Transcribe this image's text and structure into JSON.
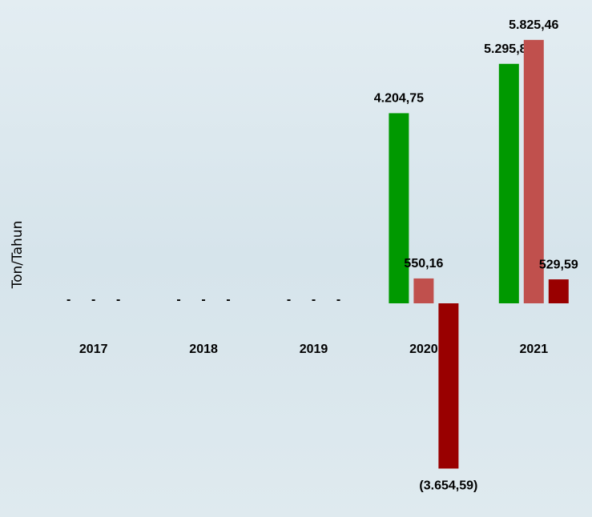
{
  "chart_data": {
    "type": "bar",
    "y_label": "Ton/Tahun",
    "categories": [
      "2017",
      "2018",
      "2019",
      "2020",
      "2021"
    ],
    "series": [
      {
        "color": "#009900",
        "values": [
          0,
          0,
          0,
          4204.75,
          5295.88
        ],
        "value_labels": [
          "-",
          "-",
          "-",
          "4.204,75",
          "5.295,88"
        ]
      },
      {
        "color": "#c0504d",
        "values": [
          0,
          0,
          0,
          550.16,
          5825.46
        ],
        "value_labels": [
          "-",
          "-",
          "-",
          "550,16",
          "5.825,46"
        ]
      },
      {
        "color": "#990000",
        "values": [
          0,
          0,
          0,
          -3654.59,
          529.59
        ],
        "value_labels": [
          "-",
          "-",
          "-",
          "(3.654,59)",
          "529,59"
        ]
      }
    ],
    "ylim": [
      -4000,
      6000
    ]
  }
}
